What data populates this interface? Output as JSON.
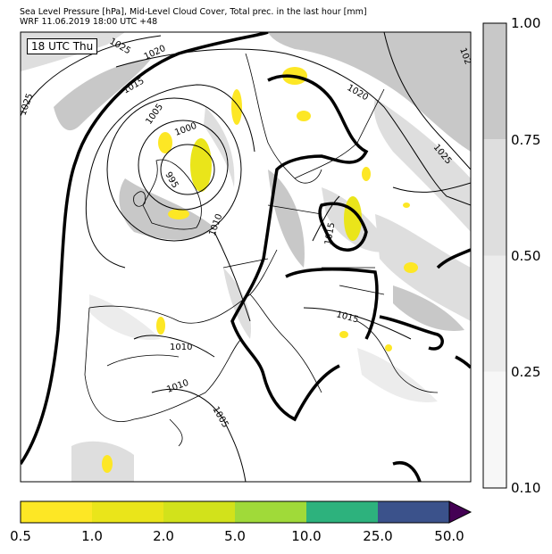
{
  "header": {
    "line1": "Sea Level Pressure [hPa], Mid-Level Cloud Cover, Total prec. in the last hour [mm]",
    "line2": "WRF 11.06.2019 18:00 UTC +48"
  },
  "map": {
    "time_label": "18 UTC Thu",
    "isobar_labels": [
      "1025",
      "1020",
      "1015",
      "1005",
      "1000",
      "995",
      "1010",
      "1020",
      "1025",
      "1015",
      "1015",
      "1010",
      "1010",
      "1005",
      "1025",
      "102"
    ]
  },
  "cloud_colorbar": {
    "ticks": [
      "1.00",
      "0.75",
      "0.50",
      "0.25",
      "0.10"
    ],
    "colors": [
      "#c8c8c8",
      "#dedede",
      "#ececec",
      "#f7f7f7"
    ]
  },
  "precip_colorbar": {
    "ticks": [
      "0.5",
      "1.0",
      "2.0",
      "5.0",
      "10.0",
      "25.0",
      "50.0"
    ],
    "colors": [
      "#fde725",
      "#eae51a",
      "#d2e21b",
      "#a0da39",
      "#2db27d",
      "#3b528b",
      "#440154"
    ]
  }
}
